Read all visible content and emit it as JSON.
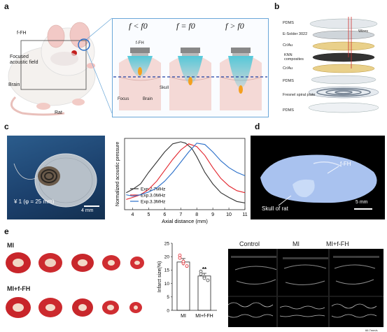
{
  "panels": {
    "a": {
      "label": "a",
      "fFH": "f-FH",
      "focused_field": "Focused\nacoustic field",
      "brain": "Brain",
      "rat": "Rat",
      "conditions": [
        "f < f0",
        "f = f0",
        "f > f0"
      ],
      "subpanel_fFH": "f-FH",
      "focus": "Focus",
      "brain2": "Brain",
      "skull": "Skull"
    },
    "b": {
      "label": "b",
      "layers": [
        "PDMS",
        "E-Solder 3022",
        "Cr/Au",
        "KNN composites",
        "Cr/Au",
        "PDMS",
        "Fresnel spiral plate",
        "PDMS"
      ],
      "wires": "Wires"
    },
    "c": {
      "label": "c",
      "coin_text": "¥ 1 (φ = 25 mm)",
      "scale": "4 mm"
    },
    "d": {
      "label": "d",
      "fFH": "f-FH",
      "skull": "Skull of rat",
      "scale": "5 mm"
    },
    "e": {
      "label": "e",
      "mi": "MI",
      "mi_ffh": "MI+f-FH",
      "echo_labels": [
        "Control",
        "MI",
        "MI+f-FH"
      ],
      "echo_scale": "66.7mm/s"
    }
  },
  "chart_data": [
    {
      "type": "line",
      "ylabel": "Normalized acoustic pressure",
      "xlabel": "Axial distance (mm)",
      "xlim": [
        3.5,
        11
      ],
      "ylim": [
        0,
        1.05
      ],
      "xticks": [
        4,
        5,
        6,
        7,
        8,
        9,
        10,
        11
      ],
      "legend_position": "bottom-left",
      "series": [
        {
          "name": "Exp.2.7MHz",
          "color": "#333333",
          "x": [
            3.6,
            4.0,
            4.5,
            5.0,
            5.5,
            6.0,
            6.5,
            7.0,
            7.3,
            7.7,
            8.0,
            8.5,
            9.0,
            9.5,
            10.0,
            10.5,
            11.0
          ],
          "y": [
            0.25,
            0.3,
            0.38,
            0.55,
            0.7,
            0.85,
            0.97,
            1.0,
            0.98,
            0.9,
            0.78,
            0.55,
            0.38,
            0.25,
            0.18,
            0.12,
            0.1
          ]
        },
        {
          "name": "Exp.3.0MHz",
          "color": "#e2232b",
          "x": [
            3.6,
            4.0,
            4.5,
            5.0,
            5.5,
            6.0,
            6.5,
            7.0,
            7.5,
            8.0,
            8.5,
            9.0,
            9.5,
            10.0,
            10.5,
            11.0
          ],
          "y": [
            0.15,
            0.18,
            0.22,
            0.3,
            0.42,
            0.58,
            0.74,
            0.88,
            0.97,
            0.93,
            0.8,
            0.62,
            0.46,
            0.35,
            0.28,
            0.25
          ]
        },
        {
          "name": "Exp.3.3MHz",
          "color": "#2a6fc9",
          "x": [
            3.6,
            4.0,
            4.5,
            5.0,
            5.5,
            6.0,
            6.5,
            7.0,
            7.5,
            8.0,
            8.5,
            9.0,
            9.5,
            10.0,
            10.5,
            11.0
          ],
          "y": [
            0.22,
            0.2,
            0.22,
            0.26,
            0.32,
            0.42,
            0.55,
            0.7,
            0.85,
            0.98,
            0.96,
            0.85,
            0.72,
            0.62,
            0.55,
            0.5
          ]
        }
      ]
    },
    {
      "type": "bar",
      "ylabel": "Infarct size(%)",
      "categories": [
        "MI",
        "MI+f-FH"
      ],
      "values": [
        18,
        12.8
      ],
      "errors": [
        1.3,
        1.0
      ],
      "ylim": [
        0,
        25
      ],
      "yticks": [
        0,
        5,
        10,
        15,
        20,
        25
      ],
      "annotation": "**",
      "points": [
        [
          20.5,
          17.5,
          16.5,
          19.5,
          18.2
        ],
        [
          14.5,
          12.5,
          11.2,
          13.5,
          12.0
        ]
      ],
      "point_colors": [
        "#e2232b",
        "#444444"
      ]
    }
  ]
}
